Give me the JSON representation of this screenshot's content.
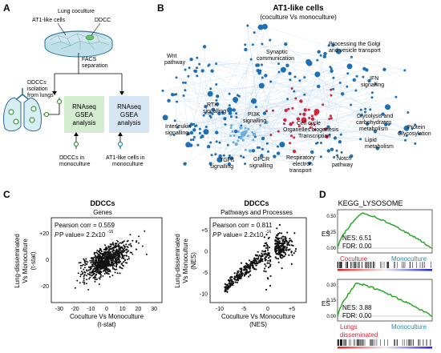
{
  "panelA": {
    "letter": "A",
    "lung_coculture": "Lung coculture",
    "at1_cells": "AT1-like cells",
    "ddcc": "DDCC",
    "facs_line1": "FACS",
    "facs_line2": "separation",
    "isolation_line1": "DDCCs",
    "isolation_line2": "isolation",
    "isolation_line3": "from lungs",
    "box1_line1": "RNAseq",
    "box1_line2": "GSEA",
    "box1_line3": "analysis",
    "box2_line1": "RNAseq",
    "box2_line2": "GSEA",
    "box2_line3": "analysis",
    "ddcc_mono_line1": "DDCCs in",
    "ddcc_mono_line2": "monoculture",
    "at1_mono_line1": "AT1-like cells in",
    "at1_mono_line2": "monoculture"
  },
  "panelB": {
    "letter": "B",
    "title": "AT1-like cells",
    "subtitle": "(coculture Vs monoculture)",
    "labels": {
      "wnt1": "Wnt",
      "wnt2": "pathway",
      "synaptic1": "Synaptic",
      "synaptic2": "communication",
      "golgi1": "Processing the Golgi",
      "golgi2": "and vesicle transport",
      "ifn1": "IFN",
      "ifn2": "signalling",
      "rtk1": "RTK",
      "rtk2": "signalling",
      "pi3k1": "PI3K",
      "pi3k2": "signalling",
      "interleukin1": "Interleukin",
      "interleukin2": "signalling",
      "cellcycle": "Cell cycle",
      "organelles": "Organelles biogenesis",
      "transcription": "Transcription",
      "glyco1": "Glycolysis and",
      "glyco2": "carbohydrates",
      "glyco3": "metabolism",
      "lipid1": "Lipid",
      "lipid2": "metabolism",
      "protein1": "Protein",
      "protein2": "Glycosylation",
      "tgfb1": "TGFß",
      "tgfb2": "signalling",
      "gpcr1": "GPCR",
      "gpcr2": "signalling",
      "resp1": "Respiratory",
      "resp2": "electron",
      "resp3": "transport",
      "notch1": "Notch",
      "notch2": "pathway"
    }
  },
  "panelC": {
    "letter": "C",
    "left": {
      "title1": "DDCCs",
      "title2": "Genes",
      "pearson": "Pearson corr = 0.559",
      "pvalue": "P value= 2.2x10",
      "pvalue_exp": "-16",
      "ylabel1": "Lung-disseminated",
      "ylabel2": "Vs Monoculture",
      "ylabel3": "(t-stat)",
      "xlabel1": "Coculture Vs Monoculture",
      "xlabel2": "(t-stat)",
      "xticks": [
        "-30",
        "-20",
        "-10",
        "0",
        "10",
        "20",
        "30"
      ],
      "yticks": [
        "+20",
        "0",
        "-20"
      ]
    },
    "right": {
      "title1": "DDCCs",
      "title2": "Pathways and Processes",
      "pearson": "Pearson corr = 0.811",
      "pvalue": "P value= 2.2x10",
      "pvalue_exp": "-16",
      "ylabel1": "Lung-disseminated",
      "ylabel2": "Vs Monoculture",
      "ylabel3": "(NES)",
      "xlabel1": "Coculture Vs Monoculture",
      "xlabel2": "(NES)",
      "xticks": [
        "-10",
        "-5",
        "0",
        "+5"
      ],
      "yticks": [
        "+5",
        "0",
        "-5",
        "-10"
      ]
    }
  },
  "panelD": {
    "letter": "D",
    "title": "KEGG_LYSOSOME",
    "top": {
      "ylabel": "ES",
      "yticks": [
        "0.50",
        "0.25",
        "0.00"
      ],
      "nes": "NES: 6.51",
      "fdr": "FDR: 0.00",
      "left_label": "Coculture",
      "right_label": "Monoculture"
    },
    "bottom": {
      "ylabel": "ES",
      "yticks": [
        "0.30",
        "0.15",
        "0.00"
      ],
      "nes": "NES: 3.88",
      "fdr": "FDR: 0.00",
      "left_label1": "Lungs",
      "left_label2": "disseminated",
      "right_label": "Monoculture"
    }
  },
  "colors": {
    "blue": "#1f6fb5",
    "red": "#d0253b",
    "green": "#2aa72a",
    "boxgreen": "#d4ecd0",
    "boxblue": "#d6e6f4"
  }
}
